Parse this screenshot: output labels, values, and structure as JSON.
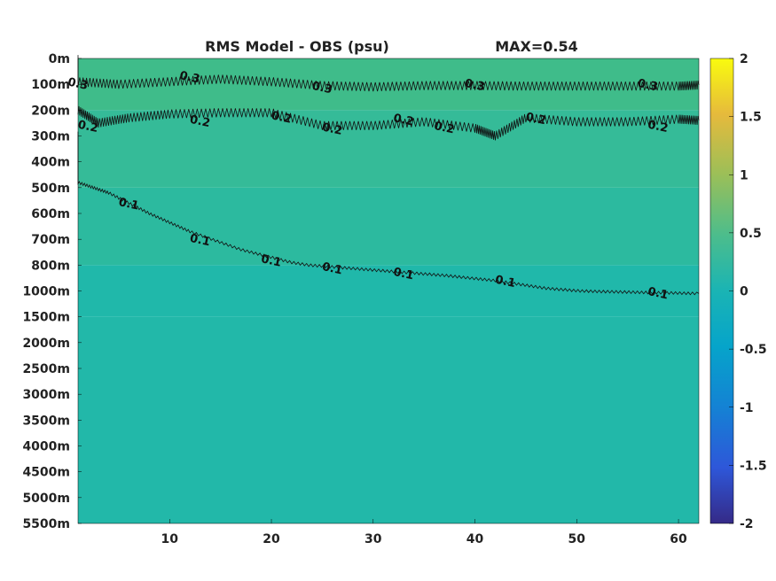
{
  "chart_data": {
    "type": "heatmap",
    "title": "RMS Model - OBS (psu)",
    "annotation": "MAX=0.54",
    "x": {
      "ticks": [
        10,
        20,
        30,
        40,
        50,
        60
      ],
      "range": [
        1,
        62
      ]
    },
    "y": {
      "tick_labels": [
        "0m",
        "100m",
        "200m",
        "300m",
        "400m",
        "500m",
        "600m",
        "700m",
        "800m",
        "1000m",
        "1500m",
        "2000m",
        "2500m",
        "3000m",
        "3500m",
        "4000m",
        "4500m",
        "5000m",
        "5500m"
      ],
      "depths": [
        0,
        100,
        200,
        300,
        400,
        500,
        600,
        700,
        800,
        1000,
        1500,
        2000,
        2500,
        3000,
        3500,
        4000,
        4500,
        5000,
        5500
      ],
      "direction": "down"
    },
    "colorbar": {
      "range": [
        -2,
        2
      ],
      "ticks": [
        -2,
        -1.5,
        -1,
        -0.5,
        0,
        0.5,
        1,
        1.5,
        2
      ],
      "tick_labels": [
        "-2",
        "-1.5",
        "-1",
        "-0.5",
        "0",
        "0.5",
        "1",
        "1.5",
        "2"
      ],
      "colormap": "parula"
    },
    "field_bands": [
      {
        "depth_range": [
          0,
          200
        ],
        "value": 0.3,
        "color": "#3fbc8a"
      },
      {
        "depth_range": [
          200,
          500
        ],
        "value": 0.22,
        "color": "#35bb98"
      },
      {
        "depth_range": [
          500,
          800
        ],
        "value": 0.14,
        "color": "#2cba9f"
      },
      {
        "depth_range": [
          800,
          1500
        ],
        "value": 0.08,
        "color": "#20b8aa"
      },
      {
        "depth_range": [
          1500,
          5500
        ],
        "value": 0.06,
        "color": "#22b8a9"
      }
    ],
    "contours": [
      {
        "level": 0.3,
        "label": "0.3",
        "points": [
          [
            1,
            0
          ],
          [
            1,
            90
          ],
          [
            5,
            100
          ],
          [
            10,
            90
          ],
          [
            15,
            80
          ],
          [
            20,
            90
          ],
          [
            25,
            105
          ],
          [
            30,
            110
          ],
          [
            35,
            105
          ],
          [
            40,
            105
          ],
          [
            45,
            107
          ],
          [
            50,
            107
          ],
          [
            55,
            107
          ],
          [
            60,
            107
          ],
          [
            62,
            103
          ]
        ],
        "label_positions": [
          [
            1,
            95
          ],
          [
            12,
            70
          ],
          [
            25,
            110
          ],
          [
            40,
            100
          ],
          [
            57,
            100
          ]
        ]
      },
      {
        "level": 0.2,
        "label": "0.2",
        "points": [
          [
            1,
            200
          ],
          [
            3,
            250
          ],
          [
            6,
            230
          ],
          [
            10,
            215
          ],
          [
            15,
            210
          ],
          [
            20,
            210
          ],
          [
            25,
            260
          ],
          [
            30,
            260
          ],
          [
            35,
            245
          ],
          [
            40,
            270
          ],
          [
            42,
            300
          ],
          [
            45,
            230
          ],
          [
            50,
            245
          ],
          [
            55,
            245
          ],
          [
            60,
            235
          ],
          [
            62,
            240
          ]
        ],
        "label_positions": [
          [
            2,
            260
          ],
          [
            13,
            240
          ],
          [
            21,
            225
          ],
          [
            26,
            270
          ],
          [
            33,
            235
          ],
          [
            37,
            265
          ],
          [
            46,
            230
          ],
          [
            58,
            260
          ]
        ]
      },
      {
        "level": 0.1,
        "label": "0.1",
        "points": [
          [
            1,
            280
          ],
          [
            1,
            480
          ],
          [
            4,
            520
          ],
          [
            8,
            600
          ],
          [
            12,
            670
          ],
          [
            17,
            740
          ],
          [
            22,
            790
          ],
          [
            27,
            820
          ],
          [
            32,
            850
          ],
          [
            37,
            880
          ],
          [
            42,
            920
          ],
          [
            47,
            980
          ],
          [
            52,
            1010
          ],
          [
            57,
            1030
          ],
          [
            62,
            1050
          ]
        ],
        "label_positions": [
          [
            6,
            560
          ],
          [
            13,
            700
          ],
          [
            20,
            780
          ],
          [
            26,
            820
          ],
          [
            33,
            860
          ],
          [
            43,
            920
          ],
          [
            58,
            1030
          ]
        ]
      }
    ]
  }
}
